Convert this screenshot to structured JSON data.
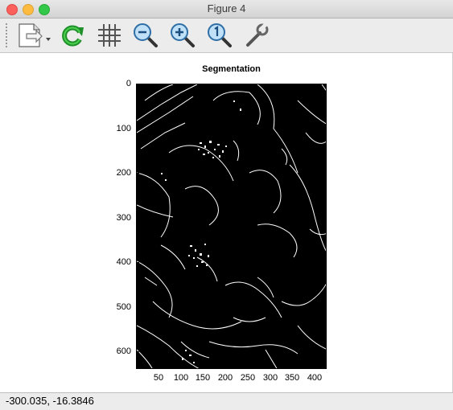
{
  "window": {
    "title": "Figure 4"
  },
  "toolbar": {
    "buttons": [
      {
        "name": "save-menu-button",
        "icon": "document-save-icon"
      },
      {
        "name": "refresh-button",
        "icon": "refresh-icon"
      },
      {
        "name": "grid-toggle-button",
        "icon": "grid-icon"
      },
      {
        "name": "zoom-out-button",
        "icon": "zoom-out-icon"
      },
      {
        "name": "zoom-in-button",
        "icon": "zoom-in-icon"
      },
      {
        "name": "zoom-reset-button",
        "icon": "zoom-reset-icon"
      },
      {
        "name": "settings-button",
        "icon": "wrench-icon"
      }
    ]
  },
  "plot": {
    "title": "Segmentation",
    "y_ticks": [
      "0",
      "100",
      "200",
      "300",
      "400",
      "500",
      "600"
    ],
    "x_ticks": [
      "50",
      "100",
      "150",
      "200",
      "250",
      "300",
      "350",
      "400"
    ]
  },
  "status": {
    "coords": "-300.035, -16.3846"
  },
  "chart_data": {
    "type": "heatmap",
    "title": "Segmentation",
    "xlabel": "",
    "ylabel": "",
    "xlim": [
      0,
      427
    ],
    "ylim": [
      640,
      0
    ],
    "colormap": "binary edge map (white edges on black background)",
    "grid": false
  }
}
